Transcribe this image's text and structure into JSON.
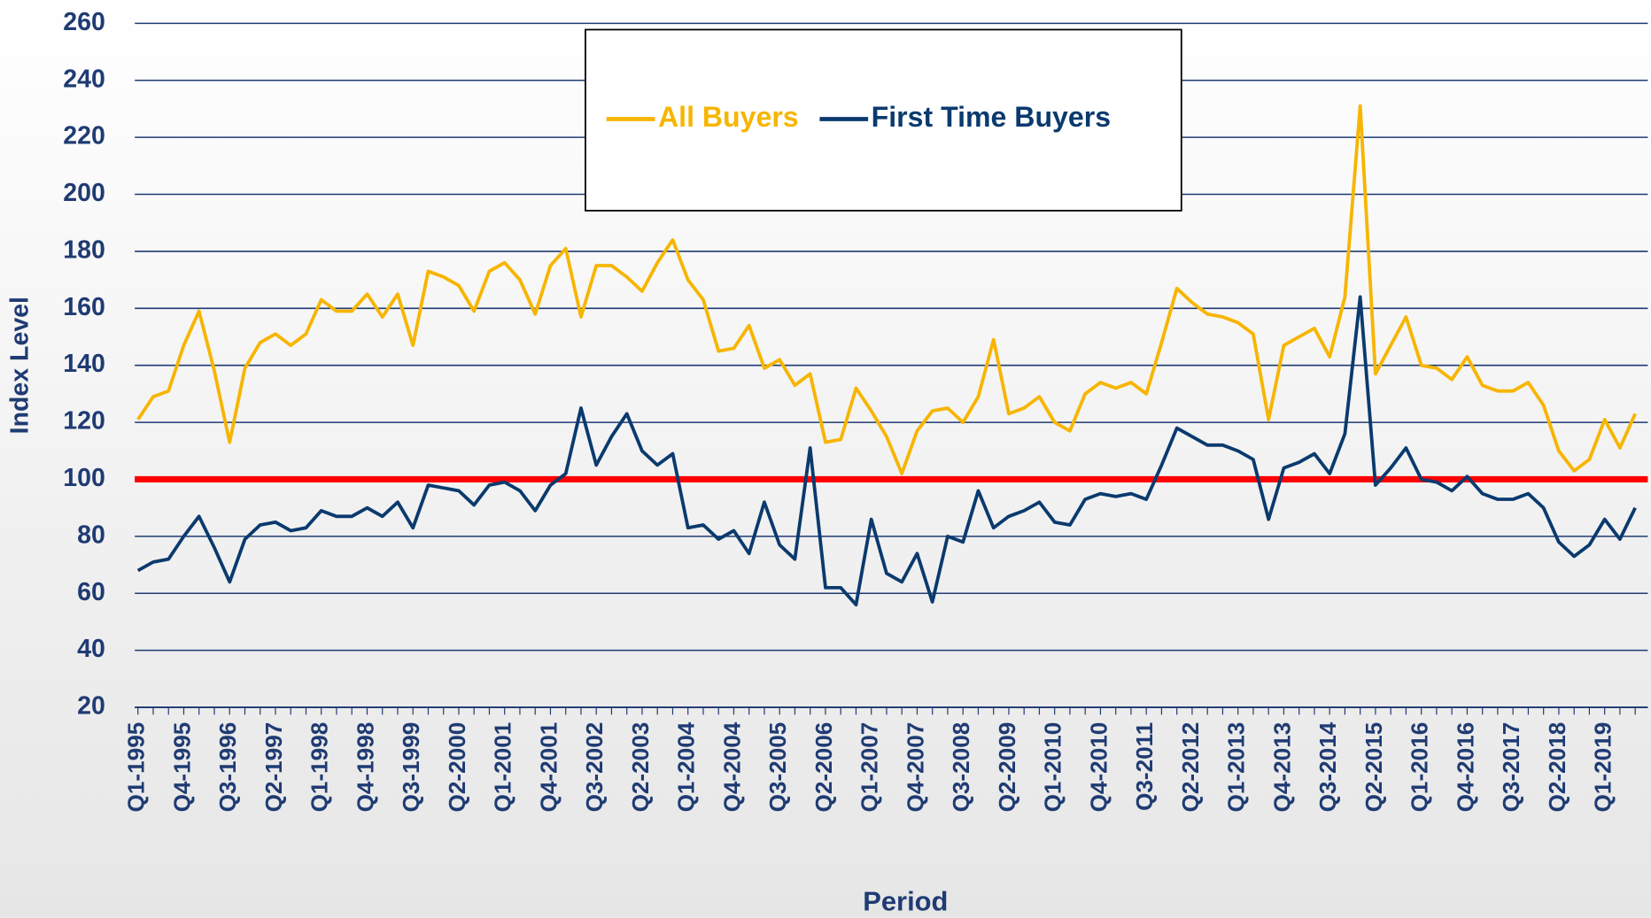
{
  "chart_data": {
    "type": "line",
    "x_label": "Period",
    "y_label": "Index Level",
    "categories": [
      "Q1-1995",
      null,
      null,
      "Q4-1995",
      null,
      null,
      "Q3-1996",
      null,
      null,
      "Q2-1997",
      null,
      null,
      "Q1-1998",
      null,
      null,
      "Q4-1998",
      null,
      null,
      "Q3-1999",
      null,
      null,
      "Q2-2000",
      null,
      null,
      "Q1-2001",
      null,
      null,
      "Q4-2001",
      null,
      null,
      "Q3-2002",
      null,
      null,
      "Q2-2003",
      null,
      null,
      "Q1-2004",
      null,
      null,
      "Q4-2004",
      null,
      null,
      "Q3-2005",
      null,
      null,
      "Q2-2006",
      null,
      null,
      "Q1-2007",
      null,
      null,
      "Q4-2007",
      null,
      null,
      "Q3-2008",
      null,
      null,
      "Q2-2009",
      null,
      null,
      "Q1-2010",
      null,
      null,
      "Q4-2010",
      null,
      null,
      "Q3-2011",
      null,
      null,
      "Q2-2012",
      null,
      null,
      "Q1-2013",
      null,
      null,
      "Q4-2013",
      null,
      null,
      "Q3-2014",
      null,
      null,
      "Q2-2015",
      null,
      null,
      "Q1-2016",
      null,
      null,
      "Q4-2016",
      null,
      null,
      "Q3-2017",
      null,
      null,
      "Q2-2018",
      null,
      null,
      "Q1-2019",
      null,
      null
    ],
    "series": [
      {
        "name": "All Buyers",
        "color": "#f7b500",
        "values": [
          121,
          129,
          131,
          147,
          159,
          138,
          113,
          139,
          148,
          151,
          147,
          151,
          163,
          159,
          159,
          165,
          157,
          165,
          147,
          173,
          171,
          168,
          159,
          173,
          176,
          170,
          158,
          175,
          181,
          157,
          175,
          175,
          171,
          166,
          176,
          184,
          170,
          163,
          145,
          146,
          154,
          139,
          142,
          133,
          137,
          113,
          114,
          132,
          124,
          115,
          102,
          117,
          124,
          125,
          120,
          129,
          149,
          123,
          125,
          129,
          120,
          117,
          130,
          134,
          132,
          134,
          130,
          148,
          167,
          162,
          158,
          157,
          155,
          151,
          121,
          147,
          150,
          153,
          143,
          164,
          231,
          137,
          147,
          157,
          140,
          139,
          135,
          143,
          133,
          131,
          131,
          134,
          126,
          110,
          103,
          107,
          121,
          111,
          123
        ]
      },
      {
        "name": "First Time Buyers",
        "color": "#0a3a6e",
        "values": [
          68,
          71,
          72,
          80,
          87,
          76,
          64,
          79,
          84,
          85,
          82,
          83,
          89,
          87,
          87,
          90,
          87,
          92,
          83,
          98,
          97,
          96,
          91,
          98,
          99,
          96,
          89,
          98,
          102,
          125,
          105,
          115,
          123,
          110,
          105,
          109,
          83,
          84,
          79,
          82,
          74,
          92,
          77,
          72,
          111,
          62,
          62,
          56,
          86,
          67,
          64,
          74,
          57,
          80,
          78,
          96,
          83,
          87,
          89,
          92,
          85,
          84,
          93,
          95,
          94,
          95,
          93,
          105,
          118,
          115,
          112,
          112,
          110,
          107,
          86,
          104,
          106,
          109,
          102,
          116,
          164,
          98,
          104,
          111,
          100,
          99,
          96,
          101,
          95,
          93,
          93,
          95,
          90,
          78,
          73,
          77,
          86,
          79,
          90
        ]
      }
    ],
    "reference_line": {
      "value": 100,
      "color": "#ff0000"
    },
    "ylim": [
      20,
      260
    ],
    "yticks": [
      20,
      40,
      60,
      80,
      100,
      120,
      140,
      160,
      180,
      200,
      220,
      240,
      260
    ],
    "grid": true,
    "legend": "top"
  }
}
